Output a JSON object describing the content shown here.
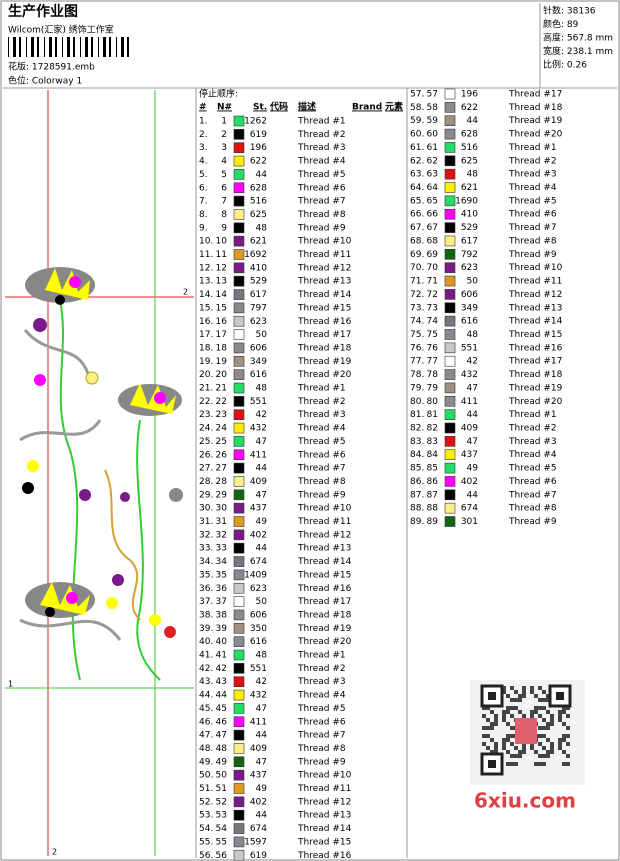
{
  "header": {
    "title": "生产作业图",
    "studio": "Wilcom(汇家) 绣饰工作室",
    "design": "花版: 1728591.emb",
    "colorway": "色位: Colorway 1"
  },
  "info": [
    "针数: 38136",
    "颜色: 89",
    "高度: 567.8 mm",
    "宽度: 238.1 mm",
    "比例: 0.26"
  ],
  "design_markers": [
    "2",
    "1",
    "2"
  ],
  "table": {
    "caption": "停止顺序:",
    "headers": [
      "#",
      "N#",
      "St.",
      "代码",
      "描述",
      "Brand",
      "元素"
    ],
    "columns": [
      {
        "rows": [
          [
            "1.",
            "1",
            "#22dd66",
            "1262",
            "Thread #1"
          ],
          [
            "2.",
            "2",
            "#000000",
            "619",
            "Thread #2"
          ],
          [
            "3.",
            "3",
            "#dd1111",
            "196",
            "Thread #3"
          ],
          [
            "4.",
            "4",
            "#ffee00",
            "622",
            "Thread #4"
          ],
          [
            "5.",
            "5",
            "#22dd66",
            "44",
            "Thread #5"
          ],
          [
            "6.",
            "6",
            "#ff00ff",
            "628",
            "Thread #6"
          ],
          [
            "7.",
            "7",
            "#000000",
            "516",
            "Thread #7"
          ],
          [
            "8.",
            "8",
            "#ffee88",
            "625",
            "Thread #8"
          ],
          [
            "9.",
            "9",
            "#000000",
            "48",
            "Thread #9"
          ],
          [
            "10.",
            "10",
            "#7a1a8a",
            "621",
            "Thread #10"
          ],
          [
            "11.",
            "11",
            "#dd9922",
            "1692",
            "Thread #11"
          ],
          [
            "12.",
            "12",
            "#7a1a8a",
            "410",
            "Thread #12"
          ],
          [
            "13.",
            "13",
            "#000000",
            "529",
            "Thread #13"
          ],
          [
            "14.",
            "14",
            "#777780",
            "617",
            "Thread #14"
          ],
          [
            "15.",
            "15",
            "#888890",
            "797",
            "Thread #15"
          ],
          [
            "16.",
            "16",
            "#c8c8c8",
            "623",
            "Thread #16"
          ],
          [
            "17.",
            "17",
            "#ffffff",
            "50",
            "Thread #17"
          ],
          [
            "18.",
            "18",
            "#8a8a90",
            "606",
            "Thread #18"
          ],
          [
            "19.",
            "19",
            "#a09080",
            "349",
            "Thread #19"
          ],
          [
            "20.",
            "20",
            "#8a8a90",
            "616",
            "Thread #20"
          ],
          [
            "21.",
            "21",
            "#22dd66",
            "48",
            "Thread #1"
          ],
          [
            "22.",
            "22",
            "#000000",
            "551",
            "Thread #2"
          ],
          [
            "23.",
            "23",
            "#dd1111",
            "42",
            "Thread #3"
          ],
          [
            "24.",
            "24",
            "#ffee00",
            "432",
            "Thread #4"
          ],
          [
            "25.",
            "25",
            "#22dd66",
            "47",
            "Thread #5"
          ],
          [
            "26.",
            "26",
            "#ff00ff",
            "411",
            "Thread #6"
          ],
          [
            "27.",
            "27",
            "#000000",
            "44",
            "Thread #7"
          ],
          [
            "28.",
            "28",
            "#ffee88",
            "409",
            "Thread #8"
          ],
          [
            "29.",
            "29",
            "#116611",
            "47",
            "Thread #9"
          ],
          [
            "30.",
            "30",
            "#7a1a8a",
            "437",
            "Thread #10"
          ],
          [
            "31.",
            "31",
            "#dd9922",
            "49",
            "Thread #11"
          ],
          [
            "32.",
            "32",
            "#7a1a8a",
            "402",
            "Thread #12"
          ],
          [
            "33.",
            "33",
            "#000000",
            "44",
            "Thread #13"
          ],
          [
            "34.",
            "34",
            "#777780",
            "674",
            "Thread #14"
          ],
          [
            "35.",
            "35",
            "#888890",
            "1409",
            "Thread #15"
          ],
          [
            "36.",
            "36",
            "#c8c8c8",
            "623",
            "Thread #16"
          ],
          [
            "37.",
            "37",
            "#ffffff",
            "50",
            "Thread #17"
          ],
          [
            "38.",
            "38",
            "#8a8a90",
            "606",
            "Thread #18"
          ],
          [
            "39.",
            "39",
            "#a09080",
            "350",
            "Thread #19"
          ],
          [
            "40.",
            "40",
            "#8a8a90",
            "616",
            "Thread #20"
          ],
          [
            "41.",
            "41",
            "#22dd66",
            "48",
            "Thread #1"
          ],
          [
            "42.",
            "42",
            "#000000",
            "551",
            "Thread #2"
          ],
          [
            "43.",
            "43",
            "#dd1111",
            "42",
            "Thread #3"
          ],
          [
            "44.",
            "44",
            "#ffee00",
            "432",
            "Thread #4"
          ],
          [
            "45.",
            "45",
            "#22dd66",
            "47",
            "Thread #5"
          ],
          [
            "46.",
            "46",
            "#ff00ff",
            "411",
            "Thread #6"
          ],
          [
            "47.",
            "47",
            "#000000",
            "44",
            "Thread #7"
          ],
          [
            "48.",
            "48",
            "#ffee88",
            "409",
            "Thread #8"
          ],
          [
            "49.",
            "49",
            "#116611",
            "47",
            "Thread #9"
          ],
          [
            "50.",
            "50",
            "#7a1a8a",
            "437",
            "Thread #10"
          ],
          [
            "51.",
            "51",
            "#dd9922",
            "49",
            "Thread #11"
          ],
          [
            "52.",
            "52",
            "#7a1a8a",
            "402",
            "Thread #12"
          ],
          [
            "53.",
            "53",
            "#000000",
            "44",
            "Thread #13"
          ],
          [
            "54.",
            "54",
            "#777780",
            "674",
            "Thread #14"
          ],
          [
            "55.",
            "55",
            "#888890",
            "1597",
            "Thread #15"
          ],
          [
            "56.",
            "56",
            "#c8c8c8",
            "619",
            "Thread #16"
          ]
        ]
      },
      {
        "rows": [
          [
            "57.",
            "57",
            "#ffffff",
            "196",
            "Thread #17"
          ],
          [
            "58.",
            "58",
            "#8a8a90",
            "622",
            "Thread #18"
          ],
          [
            "59.",
            "59",
            "#a09080",
            "44",
            "Thread #19"
          ],
          [
            "60.",
            "60",
            "#8a8a90",
            "628",
            "Thread #20"
          ],
          [
            "61.",
            "61",
            "#22dd66",
            "516",
            "Thread #1"
          ],
          [
            "62.",
            "62",
            "#000000",
            "625",
            "Thread #2"
          ],
          [
            "63.",
            "63",
            "#dd1111",
            "48",
            "Thread #3"
          ],
          [
            "64.",
            "64",
            "#ffee00",
            "621",
            "Thread #4"
          ],
          [
            "65.",
            "65",
            "#22dd66",
            "1690",
            "Thread #5"
          ],
          [
            "66.",
            "66",
            "#ff00ff",
            "410",
            "Thread #6"
          ],
          [
            "67.",
            "67",
            "#000000",
            "529",
            "Thread #7"
          ],
          [
            "68.",
            "68",
            "#ffee88",
            "617",
            "Thread #8"
          ],
          [
            "69.",
            "69",
            "#116611",
            "792",
            "Thread #9"
          ],
          [
            "70.",
            "70",
            "#7a1a8a",
            "623",
            "Thread #10"
          ],
          [
            "71.",
            "71",
            "#dd9922",
            "50",
            "Thread #11"
          ],
          [
            "72.",
            "72",
            "#7a1a8a",
            "606",
            "Thread #12"
          ],
          [
            "73.",
            "73",
            "#000000",
            "349",
            "Thread #13"
          ],
          [
            "74.",
            "74",
            "#777780",
            "616",
            "Thread #14"
          ],
          [
            "75.",
            "75",
            "#888890",
            "48",
            "Thread #15"
          ],
          [
            "76.",
            "76",
            "#c8c8c8",
            "551",
            "Thread #16"
          ],
          [
            "77.",
            "77",
            "#ffffff",
            "42",
            "Thread #17"
          ],
          [
            "78.",
            "78",
            "#8a8a90",
            "432",
            "Thread #18"
          ],
          [
            "79.",
            "79",
            "#a09080",
            "47",
            "Thread #19"
          ],
          [
            "80.",
            "80",
            "#8a8a90",
            "411",
            "Thread #20"
          ],
          [
            "81.",
            "81",
            "#22dd66",
            "44",
            "Thread #1"
          ],
          [
            "82.",
            "82",
            "#000000",
            "409",
            "Thread #2"
          ],
          [
            "83.",
            "83",
            "#dd1111",
            "47",
            "Thread #3"
          ],
          [
            "84.",
            "84",
            "#ffee00",
            "437",
            "Thread #4"
          ],
          [
            "85.",
            "85",
            "#22dd66",
            "49",
            "Thread #5"
          ],
          [
            "86.",
            "86",
            "#ff00ff",
            "402",
            "Thread #6"
          ],
          [
            "87.",
            "87",
            "#000000",
            "44",
            "Thread #7"
          ],
          [
            "88.",
            "88",
            "#ffee88",
            "674",
            "Thread #8"
          ],
          [
            "89.",
            "89",
            "#116611",
            "301",
            "Thread #9"
          ]
        ]
      }
    ]
  },
  "watermark": "6xiu.com"
}
